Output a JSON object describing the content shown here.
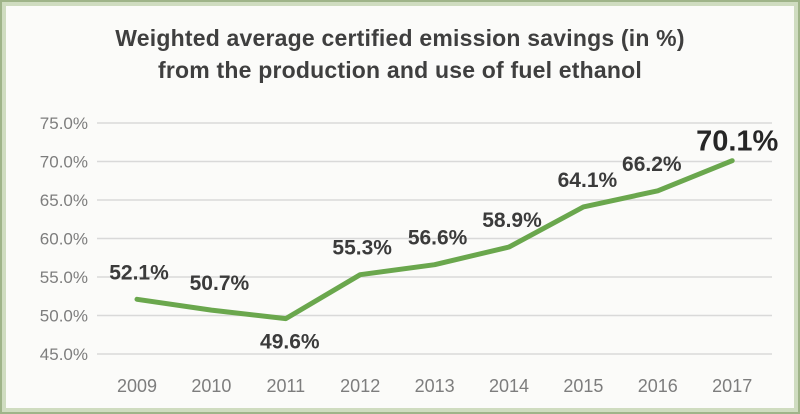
{
  "chart_data": {
    "type": "line",
    "title_line1": "Weighted average certified emission savings (in %)",
    "title_line2": "from the production and use of fuel ethanol",
    "categories": [
      "2009",
      "2010",
      "2011",
      "2012",
      "2013",
      "2014",
      "2015",
      "2016",
      "2017"
    ],
    "series": [
      {
        "name": "Weighted average certified emission savings (%)",
        "values": [
          52.1,
          50.7,
          49.6,
          55.3,
          56.6,
          58.9,
          64.1,
          66.2,
          70.1
        ]
      }
    ],
    "data_labels": [
      "52.1%",
      "50.7%",
      "49.6%",
      "55.3%",
      "56.6%",
      "58.9%",
      "64.1%",
      "66.2%",
      "70.1%"
    ],
    "label_positions": [
      "above",
      "above",
      "below",
      "above",
      "above",
      "above",
      "above",
      "above",
      "above"
    ],
    "emphasized_label_index": 8,
    "y_ticks": [
      "75.0%",
      "70.0%",
      "65.0%",
      "60.0%",
      "55.0%",
      "50.0%",
      "45.0%"
    ],
    "y_tick_values": [
      75,
      70,
      65,
      60,
      55,
      50,
      45
    ],
    "ylim": [
      45,
      75
    ],
    "xlabel": "",
    "ylabel": "",
    "grid": true,
    "legend": "none",
    "colors": {
      "line": "#6aa74d",
      "grid": "#d9d9d9",
      "axis_text": "#7d7d7d",
      "data_label": "#3b3b3b",
      "title": "#3f3f3f",
      "frame_border": "#9fb489",
      "frame_inner_border": "#cfdcc0",
      "background": "#fbfbf9"
    }
  }
}
